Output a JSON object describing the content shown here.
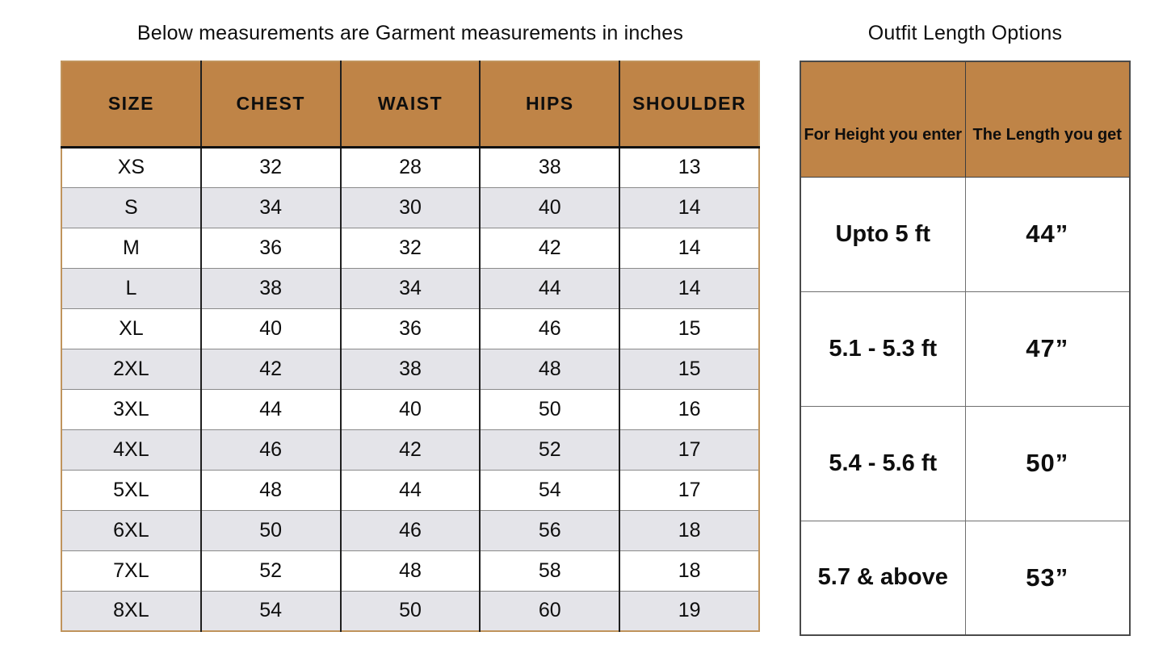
{
  "chart_data": [
    {
      "type": "table",
      "title": "Below measurements are Garment measurements in inches",
      "columns": [
        "SIZE",
        "CHEST",
        "WAIST",
        "HIPS",
        "SHOULDER"
      ],
      "rows": [
        {
          "size": "XS",
          "chest": "32",
          "waist": "28",
          "hips": "38",
          "shoulder": "13"
        },
        {
          "size": "S",
          "chest": "34",
          "waist": "30",
          "hips": "40",
          "shoulder": "14"
        },
        {
          "size": "M",
          "chest": "36",
          "waist": "32",
          "hips": "42",
          "shoulder": "14"
        },
        {
          "size": "L",
          "chest": "38",
          "waist": "34",
          "hips": "44",
          "shoulder": "14"
        },
        {
          "size": "XL",
          "chest": "40",
          "waist": "36",
          "hips": "46",
          "shoulder": "15"
        },
        {
          "size": "2XL",
          "chest": "42",
          "waist": "38",
          "hips": "48",
          "shoulder": "15"
        },
        {
          "size": "3XL",
          "chest": "44",
          "waist": "40",
          "hips": "50",
          "shoulder": "16"
        },
        {
          "size": "4XL",
          "chest": "46",
          "waist": "42",
          "hips": "52",
          "shoulder": "17"
        },
        {
          "size": "5XL",
          "chest": "48",
          "waist": "44",
          "hips": "54",
          "shoulder": "17"
        },
        {
          "size": "6XL",
          "chest": "50",
          "waist": "46",
          "hips": "56",
          "shoulder": "18"
        },
        {
          "size": "7XL",
          "chest": "52",
          "waist": "48",
          "hips": "58",
          "shoulder": "18"
        },
        {
          "size": "8XL",
          "chest": "54",
          "waist": "50",
          "hips": "60",
          "shoulder": "19"
        }
      ],
      "layout_hints": {
        "striped_rows": true,
        "header_position": "top"
      }
    },
    {
      "type": "table",
      "title": "Outfit Length Options",
      "columns": [
        "For Height you enter",
        "The Length you get"
      ],
      "rows": [
        {
          "height": "Upto 5 ft",
          "length": "44”"
        },
        {
          "height": "5.1 - 5.3 ft",
          "length": "47”"
        },
        {
          "height": "5.4 - 5.6 ft",
          "length": "50”"
        },
        {
          "height": "5.7 & above",
          "length": "53”"
        }
      ],
      "layout_hints": {
        "striped_rows": false,
        "header_position": "top"
      }
    }
  ],
  "colors": {
    "header_fill": "#bf8447",
    "alt_row_fill": "#e4e4e9",
    "row_fill": "#ffffff",
    "garment_table_border": "#c0945c",
    "grid_dark": "#1f1f1f",
    "grid_light": "#8a8a8a",
    "length_table_border": "#4a4a4a",
    "text": "#0e0e0e"
  }
}
